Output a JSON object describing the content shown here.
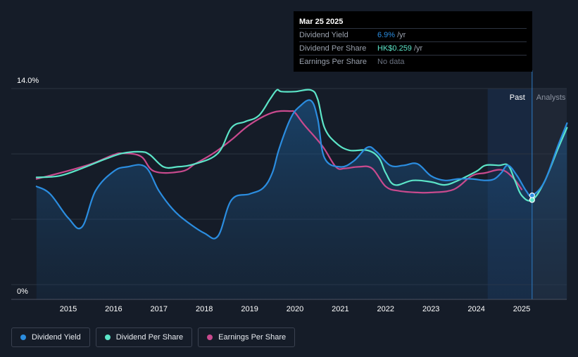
{
  "tooltip": {
    "date": "Mar 25 2025",
    "rows": [
      {
        "label": "Dividend Yield",
        "value": "6.9%",
        "unit": "/yr",
        "color": "#2b8de0"
      },
      {
        "label": "Dividend Per Share",
        "value": "HK$0.259",
        "unit": "/yr",
        "color": "#5ce5c8"
      },
      {
        "label": "Earnings Per Share",
        "value": "No data",
        "unit": "",
        "color": "#6b7280"
      }
    ]
  },
  "chart_data": {
    "type": "line",
    "y_axis": {
      "top_label": "14.0%",
      "bottom_label": "0%",
      "ylim": [
        0,
        14
      ]
    },
    "x_axis": {
      "ticks": [
        "2015",
        "2016",
        "2017",
        "2018",
        "2019",
        "2020",
        "2021",
        "2022",
        "2023",
        "2024",
        "2025"
      ],
      "xlim": [
        2014.2,
        2026.0
      ]
    },
    "grid": true,
    "regions": {
      "past_label": "Past",
      "analysts_label": "Analysts",
      "past_start": 2024.25,
      "divider": 2025.23
    },
    "series": [
      {
        "name": "Dividend Yield",
        "color": "#2b8de0",
        "points": [
          [
            2014.3,
            7.5
          ],
          [
            2014.6,
            7.0
          ],
          [
            2015.0,
            5.4
          ],
          [
            2015.3,
            4.8
          ],
          [
            2015.6,
            7.2
          ],
          [
            2016.0,
            8.5
          ],
          [
            2016.3,
            8.8
          ],
          [
            2016.7,
            8.8
          ],
          [
            2017.0,
            7.2
          ],
          [
            2017.3,
            6.0
          ],
          [
            2017.6,
            5.2
          ],
          [
            2018.0,
            4.4
          ],
          [
            2018.3,
            4.2
          ],
          [
            2018.6,
            6.6
          ],
          [
            2019.0,
            7.0
          ],
          [
            2019.3,
            7.4
          ],
          [
            2019.5,
            8.4
          ],
          [
            2019.65,
            10.0
          ],
          [
            2019.9,
            12.0
          ],
          [
            2020.1,
            12.8
          ],
          [
            2020.35,
            13.2
          ],
          [
            2020.5,
            12.0
          ],
          [
            2020.65,
            9.4
          ],
          [
            2021.0,
            8.8
          ],
          [
            2021.3,
            9.2
          ],
          [
            2021.6,
            10.1
          ],
          [
            2021.8,
            9.8
          ],
          [
            2022.1,
            8.9
          ],
          [
            2022.4,
            8.9
          ],
          [
            2022.7,
            9.0
          ],
          [
            2023.0,
            8.2
          ],
          [
            2023.3,
            7.9
          ],
          [
            2023.6,
            8.0
          ],
          [
            2023.9,
            8.0
          ],
          [
            2024.2,
            7.9
          ],
          [
            2024.4,
            8.0
          ],
          [
            2024.55,
            8.4
          ],
          [
            2024.7,
            8.9
          ],
          [
            2024.9,
            8.2
          ],
          [
            2025.1,
            7.2
          ],
          [
            2025.23,
            6.9
          ],
          [
            2025.5,
            7.8
          ],
          [
            2025.8,
            10.2
          ],
          [
            2026.0,
            11.7
          ]
        ]
      },
      {
        "name": "Dividend Per Share",
        "color": "#5ce5c8",
        "points": [
          [
            2014.3,
            8.1
          ],
          [
            2014.8,
            8.2
          ],
          [
            2015.3,
            8.7
          ],
          [
            2015.8,
            9.3
          ],
          [
            2016.2,
            9.7
          ],
          [
            2016.6,
            9.8
          ],
          [
            2016.8,
            9.6
          ],
          [
            2017.1,
            8.8
          ],
          [
            2017.4,
            8.8
          ],
          [
            2017.8,
            9.0
          ],
          [
            2018.3,
            9.7
          ],
          [
            2018.6,
            11.4
          ],
          [
            2018.9,
            11.8
          ],
          [
            2019.2,
            12.2
          ],
          [
            2019.45,
            13.3
          ],
          [
            2019.6,
            13.9
          ],
          [
            2019.7,
            13.8
          ],
          [
            2020.0,
            13.8
          ],
          [
            2020.35,
            13.9
          ],
          [
            2020.5,
            13.3
          ],
          [
            2020.65,
            11.4
          ],
          [
            2020.9,
            10.4
          ],
          [
            2021.2,
            9.9
          ],
          [
            2021.6,
            9.9
          ],
          [
            2021.85,
            9.4
          ],
          [
            2022.0,
            8.4
          ],
          [
            2022.2,
            7.6
          ],
          [
            2022.6,
            7.9
          ],
          [
            2023.0,
            7.8
          ],
          [
            2023.3,
            7.6
          ],
          [
            2023.6,
            7.9
          ],
          [
            2024.0,
            8.5
          ],
          [
            2024.2,
            8.9
          ],
          [
            2024.5,
            8.9
          ],
          [
            2024.7,
            8.9
          ],
          [
            2024.85,
            7.9
          ],
          [
            2025.0,
            6.9
          ],
          [
            2025.23,
            6.6
          ],
          [
            2025.5,
            7.8
          ],
          [
            2025.8,
            10.0
          ],
          [
            2026.0,
            11.4
          ]
        ]
      },
      {
        "name": "Earnings Per Share",
        "color": "#c94a8e",
        "points": [
          [
            2014.3,
            8.0
          ],
          [
            2014.7,
            8.3
          ],
          [
            2015.3,
            8.8
          ],
          [
            2015.6,
            9.1
          ],
          [
            2016.0,
            9.6
          ],
          [
            2016.2,
            9.7
          ],
          [
            2016.6,
            9.5
          ],
          [
            2016.9,
            8.5
          ],
          [
            2017.5,
            8.5
          ],
          [
            2017.8,
            9.0
          ],
          [
            2018.2,
            9.7
          ],
          [
            2018.6,
            10.6
          ],
          [
            2019.0,
            11.6
          ],
          [
            2019.5,
            12.4
          ],
          [
            2019.9,
            12.5
          ],
          [
            2020.0,
            12.4
          ],
          [
            2020.2,
            11.6
          ],
          [
            2020.6,
            10.2
          ],
          [
            2020.9,
            8.8
          ],
          [
            2021.1,
            8.7
          ],
          [
            2021.4,
            8.8
          ],
          [
            2021.7,
            8.7
          ],
          [
            2022.0,
            7.5
          ],
          [
            2022.3,
            7.2
          ],
          [
            2022.7,
            7.1
          ],
          [
            2023.0,
            7.1
          ],
          [
            2023.5,
            7.3
          ],
          [
            2023.9,
            8.2
          ],
          [
            2024.2,
            8.4
          ],
          [
            2024.55,
            8.6
          ],
          [
            2024.8,
            8.1
          ],
          [
            2025.0,
            7.3
          ]
        ]
      }
    ]
  },
  "legend": [
    {
      "label": "Dividend Yield",
      "color": "#2b8de0"
    },
    {
      "label": "Dividend Per Share",
      "color": "#5ce5c8"
    },
    {
      "label": "Earnings Per Share",
      "color": "#c94a8e"
    }
  ]
}
